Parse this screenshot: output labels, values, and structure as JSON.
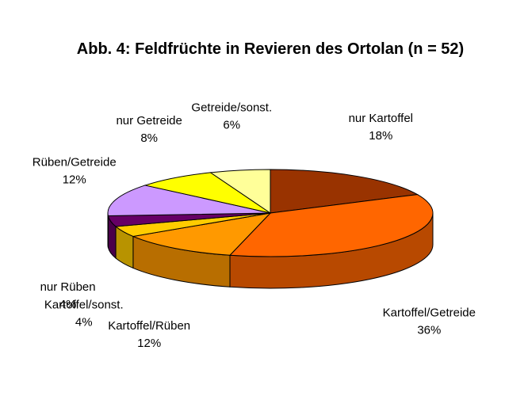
{
  "chart_data": {
    "type": "pie",
    "title": "Abb. 4: Feldfrüchte in Revieren des Ortolan (n = 52)",
    "slices": [
      {
        "name": "nur Kartoffel",
        "value": 18,
        "label": "18%",
        "color": "#993300"
      },
      {
        "name": "Kartoffel/Getreide",
        "value": 36,
        "label": "36%",
        "color": "#ff6600"
      },
      {
        "name": "Kartoffel/Rüben",
        "value": 12,
        "label": "12%",
        "color": "#ff9900"
      },
      {
        "name": "Kartoffel/sonst.",
        "value": 4,
        "label": "4%",
        "color": "#ffcc00"
      },
      {
        "name": "nur Rüben",
        "value": 4,
        "label": "4%",
        "color": "#660066"
      },
      {
        "name": "Rüben/Getreide",
        "value": 12,
        "label": "12%",
        "color": "#cc99ff"
      },
      {
        "name": "nur Getreide",
        "value": 8,
        "label": "8%",
        "color": "#ffff00"
      },
      {
        "name": "Getreide/sonst.",
        "value": 6,
        "label": "6%",
        "color": "#ffff99"
      }
    ],
    "style": "3d-pie",
    "legend": "none"
  }
}
